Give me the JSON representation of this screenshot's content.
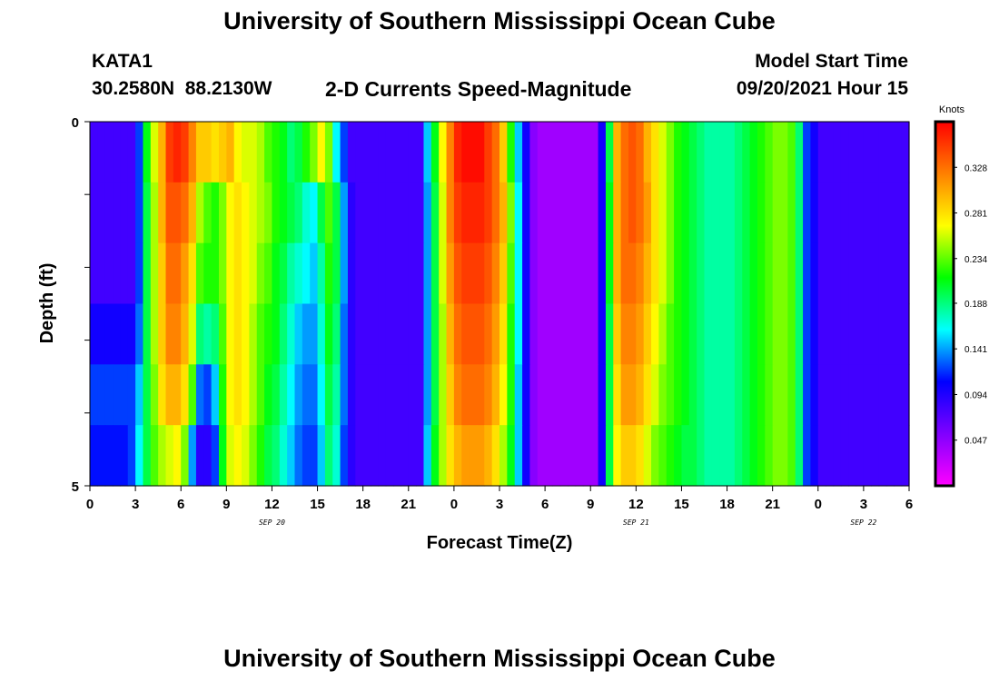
{
  "header": {
    "title_top": "University of Southern Mississippi Ocean Cube",
    "title_bottom": "University of Southern Mississippi Ocean Cube",
    "station_id": "KATA1",
    "coords": "30.2580N  88.2130W",
    "subtitle": "2-D Currents Speed-Magnitude",
    "model_start_label": "Model Start Time",
    "model_start_value": "09/20/2021 Hour 15"
  },
  "chart_data": {
    "type": "heatmap",
    "title": "2-D Currents Speed-Magnitude",
    "xlabel": "Forecast Time(Z)",
    "ylabel": "Depth (ft)",
    "ylim": [
      0,
      5
    ],
    "y_ticks": [
      "0",
      "5"
    ],
    "x_ticks": [
      "0",
      "3",
      "6",
      "9",
      "12",
      "15",
      "18",
      "21",
      "0",
      "3",
      "6",
      "9",
      "12",
      "15",
      "18",
      "21",
      "0",
      "3",
      "6"
    ],
    "date_labels": [
      {
        "text": "SEP 20",
        "hour": 12
      },
      {
        "text": "SEP 21",
        "hour": 36
      },
      {
        "text": "SEP 22",
        "hour": 51
      }
    ],
    "x_range_hours": [
      0,
      54
    ],
    "depth_levels": 5,
    "colorbar": {
      "unit": "Knots",
      "min": 0.0,
      "max": 0.375,
      "ticks": [
        0.047,
        0.094,
        0.141,
        0.188,
        0.234,
        0.281,
        0.328
      ],
      "colors": [
        "#ff00ff",
        "#8000ff",
        "#0000ff",
        "#00ffff",
        "#00ff00",
        "#ffff00",
        "#ff8000",
        "#ff0000"
      ]
    },
    "columns_per_hour": 2,
    "values_by_depth": [
      [
        0.08,
        0.08,
        0.08,
        0.08,
        0.08,
        0.08,
        0.12,
        0.21,
        0.26,
        0.3,
        0.35,
        0.36,
        0.35,
        0.32,
        0.29,
        0.29,
        0.28,
        0.29,
        0.3,
        0.27,
        0.26,
        0.26,
        0.25,
        0.23,
        0.22,
        0.21,
        0.19,
        0.2,
        0.22,
        0.24,
        0.27,
        0.24,
        0.16,
        0.12,
        0.08,
        0.08,
        0.08,
        0.08,
        0.08,
        0.08,
        0.08,
        0.08,
        0.08,
        0.08,
        0.15,
        0.21,
        0.27,
        0.32,
        0.36,
        0.37,
        0.37,
        0.37,
        0.35,
        0.33,
        0.29,
        0.22,
        0.15,
        0.1,
        0.05,
        0.04,
        0.04,
        0.04,
        0.04,
        0.04,
        0.04,
        0.04,
        0.04,
        0.1,
        0.2,
        0.3,
        0.33,
        0.34,
        0.33,
        0.3,
        0.28,
        0.26,
        0.24,
        0.22,
        0.21,
        0.2,
        0.19,
        0.18,
        0.18,
        0.18,
        0.18,
        0.19,
        0.2,
        0.21,
        0.22,
        0.23,
        0.24,
        0.24,
        0.23,
        0.19,
        0.12,
        0.1,
        0.08,
        0.08,
        0.08,
        0.08,
        0.08,
        0.08,
        0.08,
        0.08,
        0.08,
        0.08,
        0.08,
        0.08
      ],
      [
        0.08,
        0.08,
        0.08,
        0.08,
        0.08,
        0.08,
        0.12,
        0.2,
        0.25,
        0.3,
        0.34,
        0.34,
        0.33,
        0.3,
        0.25,
        0.23,
        0.22,
        0.24,
        0.27,
        0.28,
        0.27,
        0.26,
        0.25,
        0.24,
        0.22,
        0.21,
        0.2,
        0.19,
        0.17,
        0.16,
        0.2,
        0.23,
        0.2,
        0.14,
        0.09,
        0.08,
        0.08,
        0.08,
        0.08,
        0.08,
        0.08,
        0.08,
        0.08,
        0.08,
        0.14,
        0.2,
        0.26,
        0.32,
        0.35,
        0.36,
        0.36,
        0.36,
        0.35,
        0.33,
        0.3,
        0.24,
        0.16,
        0.1,
        0.05,
        0.04,
        0.04,
        0.04,
        0.04,
        0.04,
        0.04,
        0.04,
        0.04,
        0.1,
        0.21,
        0.3,
        0.33,
        0.34,
        0.33,
        0.31,
        0.28,
        0.26,
        0.24,
        0.22,
        0.21,
        0.2,
        0.19,
        0.18,
        0.18,
        0.18,
        0.18,
        0.19,
        0.2,
        0.21,
        0.22,
        0.23,
        0.24,
        0.24,
        0.23,
        0.19,
        0.12,
        0.1,
        0.08,
        0.08,
        0.08,
        0.08,
        0.08,
        0.08,
        0.08,
        0.08,
        0.08,
        0.08,
        0.08,
        0.08
      ],
      [
        0.08,
        0.08,
        0.08,
        0.08,
        0.08,
        0.08,
        0.12,
        0.2,
        0.25,
        0.29,
        0.33,
        0.33,
        0.31,
        0.28,
        0.23,
        0.22,
        0.22,
        0.24,
        0.27,
        0.28,
        0.27,
        0.26,
        0.24,
        0.23,
        0.21,
        0.2,
        0.18,
        0.17,
        0.16,
        0.15,
        0.18,
        0.22,
        0.2,
        0.14,
        0.09,
        0.08,
        0.08,
        0.08,
        0.08,
        0.08,
        0.08,
        0.08,
        0.08,
        0.08,
        0.14,
        0.2,
        0.26,
        0.31,
        0.34,
        0.35,
        0.35,
        0.35,
        0.34,
        0.32,
        0.29,
        0.23,
        0.16,
        0.1,
        0.05,
        0.04,
        0.04,
        0.04,
        0.04,
        0.04,
        0.04,
        0.04,
        0.04,
        0.1,
        0.21,
        0.3,
        0.33,
        0.33,
        0.32,
        0.3,
        0.28,
        0.26,
        0.24,
        0.22,
        0.21,
        0.2,
        0.19,
        0.18,
        0.18,
        0.18,
        0.18,
        0.19,
        0.2,
        0.21,
        0.22,
        0.23,
        0.24,
        0.24,
        0.23,
        0.19,
        0.12,
        0.1,
        0.08,
        0.08,
        0.08,
        0.08,
        0.08,
        0.08,
        0.08,
        0.08,
        0.08,
        0.08,
        0.08,
        0.08
      ],
      [
        0.1,
        0.1,
        0.1,
        0.1,
        0.1,
        0.1,
        0.13,
        0.2,
        0.25,
        0.29,
        0.32,
        0.32,
        0.3,
        0.26,
        0.19,
        0.18,
        0.19,
        0.23,
        0.27,
        0.28,
        0.27,
        0.25,
        0.23,
        0.22,
        0.21,
        0.19,
        0.17,
        0.15,
        0.14,
        0.14,
        0.17,
        0.21,
        0.19,
        0.13,
        0.09,
        0.08,
        0.08,
        0.08,
        0.08,
        0.08,
        0.08,
        0.08,
        0.08,
        0.08,
        0.14,
        0.2,
        0.25,
        0.3,
        0.33,
        0.34,
        0.34,
        0.34,
        0.33,
        0.31,
        0.28,
        0.22,
        0.16,
        0.1,
        0.05,
        0.04,
        0.04,
        0.04,
        0.04,
        0.04,
        0.04,
        0.04,
        0.04,
        0.1,
        0.2,
        0.29,
        0.32,
        0.32,
        0.31,
        0.29,
        0.27,
        0.25,
        0.23,
        0.22,
        0.21,
        0.2,
        0.19,
        0.18,
        0.18,
        0.18,
        0.18,
        0.19,
        0.2,
        0.21,
        0.22,
        0.23,
        0.24,
        0.24,
        0.23,
        0.19,
        0.12,
        0.1,
        0.08,
        0.08,
        0.08,
        0.08,
        0.08,
        0.08,
        0.08,
        0.08,
        0.08,
        0.08,
        0.08,
        0.08
      ],
      [
        0.12,
        0.12,
        0.12,
        0.12,
        0.12,
        0.12,
        0.15,
        0.2,
        0.24,
        0.28,
        0.3,
        0.3,
        0.28,
        0.23,
        0.13,
        0.12,
        0.15,
        0.22,
        0.27,
        0.28,
        0.27,
        0.25,
        0.23,
        0.21,
        0.2,
        0.18,
        0.16,
        0.14,
        0.13,
        0.13,
        0.16,
        0.2,
        0.18,
        0.13,
        0.09,
        0.08,
        0.08,
        0.08,
        0.08,
        0.08,
        0.08,
        0.08,
        0.08,
        0.08,
        0.14,
        0.2,
        0.25,
        0.29,
        0.32,
        0.33,
        0.33,
        0.33,
        0.32,
        0.3,
        0.27,
        0.22,
        0.15,
        0.1,
        0.05,
        0.04,
        0.04,
        0.04,
        0.04,
        0.04,
        0.04,
        0.04,
        0.04,
        0.1,
        0.2,
        0.28,
        0.31,
        0.31,
        0.3,
        0.28,
        0.26,
        0.24,
        0.23,
        0.22,
        0.21,
        0.2,
        0.19,
        0.18,
        0.18,
        0.18,
        0.18,
        0.19,
        0.2,
        0.21,
        0.22,
        0.23,
        0.24,
        0.24,
        0.23,
        0.19,
        0.12,
        0.1,
        0.08,
        0.08,
        0.08,
        0.08,
        0.08,
        0.08,
        0.08,
        0.08,
        0.08,
        0.08,
        0.08,
        0.08
      ],
      [
        0.11,
        0.11,
        0.11,
        0.11,
        0.11,
        0.12,
        0.16,
        0.2,
        0.23,
        0.25,
        0.26,
        0.27,
        0.24,
        0.14,
        0.09,
        0.09,
        0.12,
        0.21,
        0.26,
        0.27,
        0.26,
        0.24,
        0.22,
        0.2,
        0.19,
        0.17,
        0.15,
        0.13,
        0.12,
        0.12,
        0.15,
        0.19,
        0.17,
        0.12,
        0.09,
        0.08,
        0.08,
        0.08,
        0.08,
        0.08,
        0.08,
        0.08,
        0.08,
        0.08,
        0.15,
        0.21,
        0.25,
        0.28,
        0.3,
        0.31,
        0.31,
        0.31,
        0.3,
        0.28,
        0.25,
        0.21,
        0.15,
        0.1,
        0.05,
        0.04,
        0.04,
        0.04,
        0.04,
        0.04,
        0.04,
        0.04,
        0.04,
        0.1,
        0.2,
        0.27,
        0.29,
        0.29,
        0.28,
        0.26,
        0.24,
        0.23,
        0.22,
        0.21,
        0.2,
        0.2,
        0.19,
        0.18,
        0.18,
        0.18,
        0.18,
        0.19,
        0.2,
        0.21,
        0.22,
        0.23,
        0.24,
        0.24,
        0.23,
        0.19,
        0.12,
        0.1,
        0.08,
        0.08,
        0.08,
        0.08,
        0.08,
        0.08,
        0.08,
        0.08,
        0.08,
        0.08,
        0.08,
        0.08
      ]
    ]
  }
}
